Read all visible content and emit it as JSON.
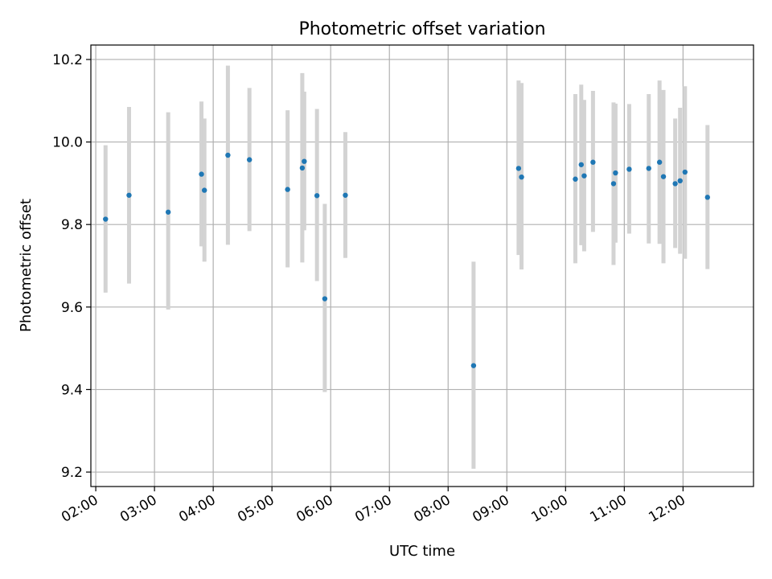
{
  "chart_data": {
    "type": "scatter",
    "title": "Photometric offset variation",
    "xlabel": "UTC time",
    "ylabel": "Photometric offset",
    "x_ticks": [
      "02:00",
      "03:00",
      "04:00",
      "05:00",
      "06:00",
      "07:00",
      "08:00",
      "09:00",
      "10:00",
      "11:00",
      "12:00"
    ],
    "y_ticks": [
      "9.2",
      "9.4",
      "9.6",
      "9.8",
      "10.0",
      "10.2"
    ],
    "xlim": [
      "01:55",
      "13:12"
    ],
    "ylim": [
      9.165,
      10.235
    ],
    "grid": true,
    "series": [
      {
        "marker_color": "#1f77b4",
        "errorbar_color": "#d3d3d3",
        "points": [
          {
            "x": "02:10",
            "y": 9.813,
            "ylo": 9.635,
            "yhi": 9.992
          },
          {
            "x": "02:34",
            "y": 9.871,
            "ylo": 9.657,
            "yhi": 10.085
          },
          {
            "x": "03:14",
            "y": 9.83,
            "ylo": 9.594,
            "yhi": 10.072
          },
          {
            "x": "03:48",
            "y": 9.922,
            "ylo": 9.747,
            "yhi": 10.098
          },
          {
            "x": "03:51",
            "y": 9.883,
            "ylo": 9.71,
            "yhi": 10.057
          },
          {
            "x": "04:15",
            "y": 9.968,
            "ylo": 9.751,
            "yhi": 10.185
          },
          {
            "x": "04:37",
            "y": 9.957,
            "ylo": 9.784,
            "yhi": 10.131
          },
          {
            "x": "05:16",
            "y": 9.885,
            "ylo": 9.696,
            "yhi": 10.077
          },
          {
            "x": "05:31",
            "y": 9.937,
            "ylo": 9.708,
            "yhi": 10.167
          },
          {
            "x": "05:33",
            "y": 9.953,
            "ylo": 9.786,
            "yhi": 10.122
          },
          {
            "x": "05:46",
            "y": 9.87,
            "ylo": 9.663,
            "yhi": 10.08
          },
          {
            "x": "05:54",
            "y": 9.62,
            "ylo": 9.394,
            "yhi": 9.85
          },
          {
            "x": "06:15",
            "y": 9.871,
            "ylo": 9.719,
            "yhi": 10.024
          },
          {
            "x": "08:26",
            "y": 9.458,
            "ylo": 9.208,
            "yhi": 9.71
          },
          {
            "x": "09:12",
            "y": 9.936,
            "ylo": 9.726,
            "yhi": 10.149
          },
          {
            "x": "09:15",
            "y": 9.915,
            "ylo": 9.691,
            "yhi": 10.143
          },
          {
            "x": "10:10",
            "y": 9.91,
            "ylo": 9.706,
            "yhi": 10.116
          },
          {
            "x": "10:16",
            "y": 9.945,
            "ylo": 9.75,
            "yhi": 10.139
          },
          {
            "x": "10:19",
            "y": 9.918,
            "ylo": 9.735,
            "yhi": 10.102
          },
          {
            "x": "10:28",
            "y": 9.951,
            "ylo": 9.782,
            "yhi": 10.124
          },
          {
            "x": "10:49",
            "y": 9.899,
            "ylo": 9.702,
            "yhi": 10.096
          },
          {
            "x": "10:51",
            "y": 9.925,
            "ylo": 9.756,
            "yhi": 10.093
          },
          {
            "x": "11:05",
            "y": 9.934,
            "ylo": 9.778,
            "yhi": 10.092
          },
          {
            "x": "11:25",
            "y": 9.936,
            "ylo": 9.754,
            "yhi": 10.116
          },
          {
            "x": "11:36",
            "y": 9.951,
            "ylo": 9.753,
            "yhi": 10.149
          },
          {
            "x": "11:40",
            "y": 9.916,
            "ylo": 9.706,
            "yhi": 10.126
          },
          {
            "x": "11:52",
            "y": 9.899,
            "ylo": 9.743,
            "yhi": 10.057
          },
          {
            "x": "11:57",
            "y": 9.906,
            "ylo": 9.729,
            "yhi": 10.083
          },
          {
            "x": "12:02",
            "y": 9.927,
            "ylo": 9.717,
            "yhi": 10.135
          },
          {
            "x": "12:25",
            "y": 9.866,
            "ylo": 9.692,
            "yhi": 10.041
          }
        ]
      }
    ]
  }
}
